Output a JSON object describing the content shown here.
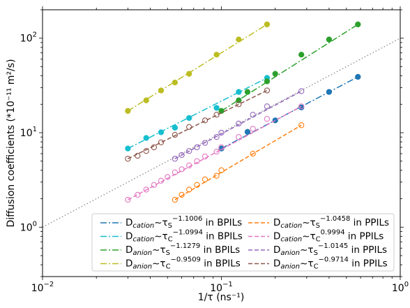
{
  "chart_data": {
    "type": "scatter",
    "xscale": "log",
    "yscale": "log",
    "xlim": [
      0.01,
      1.0
    ],
    "ylim": [
      0.3,
      200
    ],
    "xlabel": "1/τ (ns⁻¹)",
    "ylabel": "Diffusion coefficients (*10⁻¹¹ m²/s)",
    "x_ticks": [
      {
        "value": 0.01,
        "base": "10",
        "exp": "−2"
      },
      {
        "value": 0.1,
        "base": "10",
        "exp": "−1"
      },
      {
        "value": 1.0,
        "base": "10",
        "exp": "0"
      }
    ],
    "y_ticks": [
      {
        "value": 1,
        "base": "10",
        "exp": "0"
      },
      {
        "value": 10,
        "base": "10",
        "exp": "1"
      },
      {
        "value": 100,
        "base": "10",
        "exp": "2"
      }
    ],
    "reference_line": {
      "style": "dotted",
      "color": "#888888",
      "x": [
        0.01,
        1.0
      ],
      "y": [
        1.0,
        100.0
      ]
    },
    "legend_placement": "lower-right",
    "series": [
      {
        "name": "D_cation~τ_S^-1.1006 in BPILs",
        "lab_base": "D",
        "lab_sub": "cation",
        "lab_tau_sub": "S",
        "lab_exp": "−1.1006",
        "lab_suffix": "in BPILs",
        "color": "#1f77b4",
        "dash": "dashdot",
        "marker": "filled",
        "x": [
          0.1,
          0.14,
          0.2,
          0.28,
          0.4,
          0.58
        ],
        "y": [
          6.8,
          10.2,
          13.5,
          18.5,
          27,
          39
        ],
        "fit_x": [
          0.1,
          0.58
        ],
        "fit_y": [
          6.8,
          39
        ]
      },
      {
        "name": "D_cation~τ_C^-1.0994 in BPILs",
        "lab_base": "D",
        "lab_sub": "cation",
        "lab_tau_sub": "C",
        "lab_exp": "−1.0994",
        "lab_suffix": "in BPILs",
        "color": "#17becf",
        "dash": "dashdot",
        "marker": "filled",
        "x": [
          0.03,
          0.038,
          0.046,
          0.055,
          0.066,
          0.094,
          0.125,
          0.18
        ],
        "y": [
          6.8,
          8.8,
          10.1,
          11.3,
          14.3,
          18.3,
          27,
          38
        ],
        "fit_x": [
          0.03,
          0.18
        ],
        "fit_y": [
          6.8,
          38
        ]
      },
      {
        "name": "D_anion~τ_S^-1.1279 in BPILs",
        "lab_base": "D",
        "lab_sub": "anion",
        "lab_tau_sub": "S",
        "lab_exp": "−1.1279",
        "lab_suffix": "in BPILs",
        "color": "#2ca02c",
        "dash": "dashdot",
        "marker": "filled",
        "x": [
          0.1,
          0.125,
          0.14,
          0.18,
          0.2,
          0.28,
          0.4,
          0.58
        ],
        "y": [
          17,
          22,
          27,
          35,
          42,
          67,
          97,
          140
        ],
        "fit_x": [
          0.1,
          0.58
        ],
        "fit_y": [
          17,
          140
        ]
      },
      {
        "name": "D_anion~τ_C^-0.9509 in BPILs",
        "lab_base": "D",
        "lab_sub": "anion",
        "lab_tau_sub": "C",
        "lab_exp": "−0.9509",
        "lab_suffix": "in BPILs",
        "color": "#bcbd22",
        "dash": "dashdot",
        "marker": "filled",
        "x": [
          0.03,
          0.038,
          0.046,
          0.055,
          0.066,
          0.094,
          0.125,
          0.18
        ],
        "y": [
          17,
          22,
          28,
          34,
          42,
          67,
          97,
          140
        ],
        "fit_x": [
          0.03,
          0.18
        ],
        "fit_y": [
          17,
          140
        ]
      },
      {
        "name": "D_cation~τ_S^-1.0458 in PPILs",
        "lab_base": "D",
        "lab_sub": "cation",
        "lab_tau_sub": "S",
        "lab_exp": "−1.0458",
        "lab_suffix": "in PPILs",
        "color": "#ff7f0e",
        "dash": "dash",
        "marker": "open",
        "x": [
          0.055,
          0.06,
          0.066,
          0.073,
          0.081,
          0.094,
          0.1,
          0.15,
          0.28
        ],
        "y": [
          1.95,
          2.2,
          2.5,
          2.8,
          3.2,
          3.5,
          4.0,
          6.0,
          12.0
        ],
        "fit_x": [
          0.055,
          0.28
        ],
        "fit_y": [
          1.95,
          12.0
        ]
      },
      {
        "name": "D_cation~τ_C^0.9994 in PPILs",
        "lab_base": "D",
        "lab_sub": "cation",
        "lab_tau_sub": "C",
        "lab_exp": "0.9994",
        "lab_suffix": "in PPILs",
        "color": "#e377c2",
        "dash": "dash",
        "marker": "open",
        "x": [
          0.03,
          0.034,
          0.038,
          0.042,
          0.046,
          0.05,
          0.055,
          0.06,
          0.066,
          0.073,
          0.081,
          0.094,
          0.1,
          0.125,
          0.15,
          0.18,
          0.28
        ],
        "y": [
          1.95,
          2.2,
          2.5,
          2.8,
          3.1,
          3.4,
          3.8,
          4.1,
          4.5,
          5.0,
          5.6,
          6.3,
          7.0,
          9.0,
          11.0,
          14.0,
          19.0
        ],
        "fit_x": [
          0.03,
          0.28
        ],
        "fit_y": [
          1.95,
          19.0
        ]
      },
      {
        "name": "D_anion~τ_S^-1.0145 in PPILs",
        "lab_base": "D",
        "lab_sub": "anion",
        "lab_tau_sub": "S",
        "lab_exp": "−1.0145",
        "lab_suffix": "in PPILs",
        "color": "#9467bd",
        "dash": "dash",
        "marker": "open",
        "x": [
          0.055,
          0.06,
          0.066,
          0.073,
          0.081,
          0.094,
          0.1,
          0.125,
          0.15,
          0.18,
          0.28
        ],
        "y": [
          5.3,
          5.8,
          6.4,
          7.0,
          7.8,
          9.0,
          10.0,
          12.5,
          15.5,
          19.0,
          27.5
        ],
        "fit_x": [
          0.055,
          0.28
        ],
        "fit_y": [
          5.3,
          27.5
        ]
      },
      {
        "name": "D_anion~τ_C^-0.9714 in PPILs",
        "lab_base": "D",
        "lab_sub": "anion",
        "lab_tau_sub": "C",
        "lab_exp": "−0.9714",
        "lab_suffix": "in PPILs",
        "color": "#8c564b",
        "dash": "dash",
        "marker": "open",
        "x": [
          0.03,
          0.034,
          0.038,
          0.042,
          0.046,
          0.055,
          0.066,
          0.081,
          0.094,
          0.125,
          0.18
        ],
        "y": [
          5.3,
          5.7,
          6.4,
          7.0,
          7.9,
          9.5,
          11.5,
          13.5,
          15.5,
          20.0,
          28.0
        ],
        "fit_x": [
          0.03,
          0.18
        ],
        "fit_y": [
          5.3,
          28.0
        ]
      }
    ]
  }
}
